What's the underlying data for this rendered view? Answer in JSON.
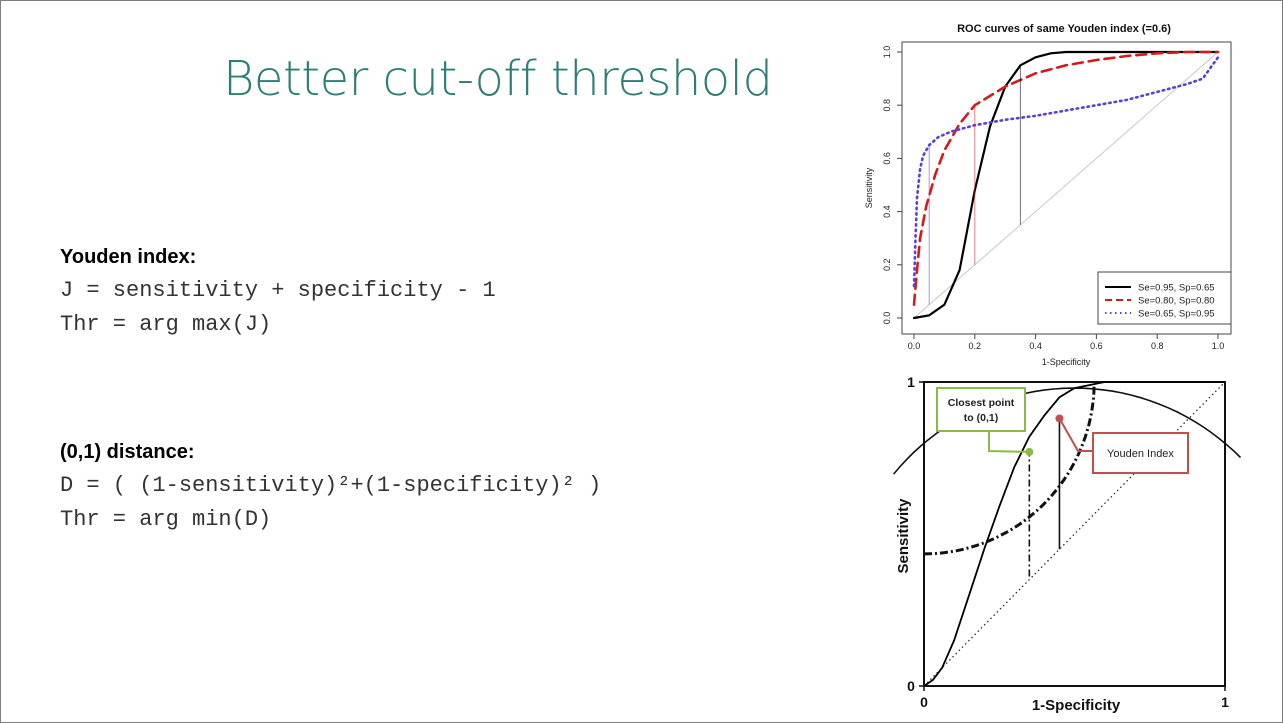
{
  "slide": {
    "title": "Better cut-off threshold",
    "youden": {
      "heading": "Youden index:",
      "line1": "J = sensitivity + specificity - 1",
      "line2": "Thr = arg max(J)"
    },
    "distance": {
      "heading": "(0,1) distance:",
      "line1": "D = ( (1-sensitivity)²+(1-specificity)² )",
      "line2": "Thr = arg min(D)"
    }
  },
  "chart_data": [
    {
      "type": "line",
      "title": "ROC curves of same Youden index (=0.6)",
      "xlabel": "1-Specificity",
      "ylabel": "Sensitivity",
      "xlim": [
        0,
        1
      ],
      "ylim": [
        0,
        1
      ],
      "xticks": [
        "0.0",
        "0.2",
        "0.4",
        "0.6",
        "0.8",
        "1.0"
      ],
      "yticks": [
        "0.0",
        "0.2",
        "0.4",
        "0.6",
        "0.8",
        "1.0"
      ],
      "legend_position": "bottom-right",
      "diagonal": true,
      "series": [
        {
          "name": "Se=0.95, Sp=0.65",
          "color": "#000000",
          "style": "solid",
          "x": [
            0,
            0.05,
            0.1,
            0.15,
            0.2,
            0.25,
            0.3,
            0.35,
            0.4,
            0.45,
            0.5,
            0.6,
            0.7,
            0.8,
            1.0
          ],
          "y": [
            0,
            0.01,
            0.05,
            0.18,
            0.48,
            0.72,
            0.87,
            0.95,
            0.98,
            0.995,
            1.0,
            1.0,
            1.0,
            1.0,
            1.0
          ],
          "youden_point": [
            0.35,
            0.95
          ]
        },
        {
          "name": "Se=0.80, Sp=0.80",
          "color": "#d7191c",
          "style": "dashed",
          "x": [
            0,
            0.01,
            0.02,
            0.04,
            0.07,
            0.1,
            0.15,
            0.2,
            0.3,
            0.4,
            0.5,
            0.6,
            0.7,
            0.8,
            0.9,
            1.0
          ],
          "y": [
            0.05,
            0.18,
            0.3,
            0.42,
            0.54,
            0.63,
            0.73,
            0.8,
            0.87,
            0.92,
            0.95,
            0.97,
            0.985,
            0.995,
            1.0,
            1.0
          ],
          "youden_point": [
            0.2,
            0.8
          ]
        },
        {
          "name": "Se=0.65, Sp=0.95",
          "color": "#5b3fd6",
          "style": "dotted",
          "x": [
            0,
            0.005,
            0.01,
            0.02,
            0.03,
            0.05,
            0.08,
            0.12,
            0.2,
            0.3,
            0.4,
            0.5,
            0.6,
            0.7,
            0.8,
            0.9,
            0.95,
            1.0
          ],
          "y": [
            0.12,
            0.3,
            0.45,
            0.56,
            0.61,
            0.65,
            0.68,
            0.7,
            0.725,
            0.745,
            0.76,
            0.78,
            0.8,
            0.82,
            0.85,
            0.88,
            0.9,
            0.98
          ],
          "youden_point": [
            0.05,
            0.65
          ]
        }
      ]
    },
    {
      "type": "line",
      "xlabel": "1-Specificity",
      "ylabel": "Sensitivity",
      "xlim": [
        0,
        1
      ],
      "ylim": [
        0,
        1
      ],
      "xticks": [
        "0",
        "1"
      ],
      "yticks": [
        "0",
        "1"
      ],
      "diagonal": true,
      "series": [
        {
          "color": "#000000",
          "style": "solid",
          "x": [
            0,
            0.03,
            0.06,
            0.1,
            0.15,
            0.2,
            0.25,
            0.3,
            0.35,
            0.4,
            0.45,
            0.5,
            0.6,
            0.7,
            0.8,
            1.0
          ],
          "y": [
            0,
            0.02,
            0.06,
            0.15,
            0.3,
            0.45,
            0.59,
            0.72,
            0.82,
            0.89,
            0.95,
            0.98,
            1.0,
            1.0,
            1.0,
            1.0
          ]
        }
      ],
      "annotations": [
        {
          "label": "Closest point to (0,1)",
          "color": "#8bb94a",
          "point": [
            0.35,
            0.77
          ]
        },
        {
          "label": "Youden Index",
          "color": "#c0504d",
          "point": [
            0.45,
            0.88
          ]
        }
      ],
      "youden_segment": [
        0.45,
        0.45,
        0.88
      ],
      "closest_segment": [
        0.35,
        0.36,
        0.77
      ]
    }
  ]
}
